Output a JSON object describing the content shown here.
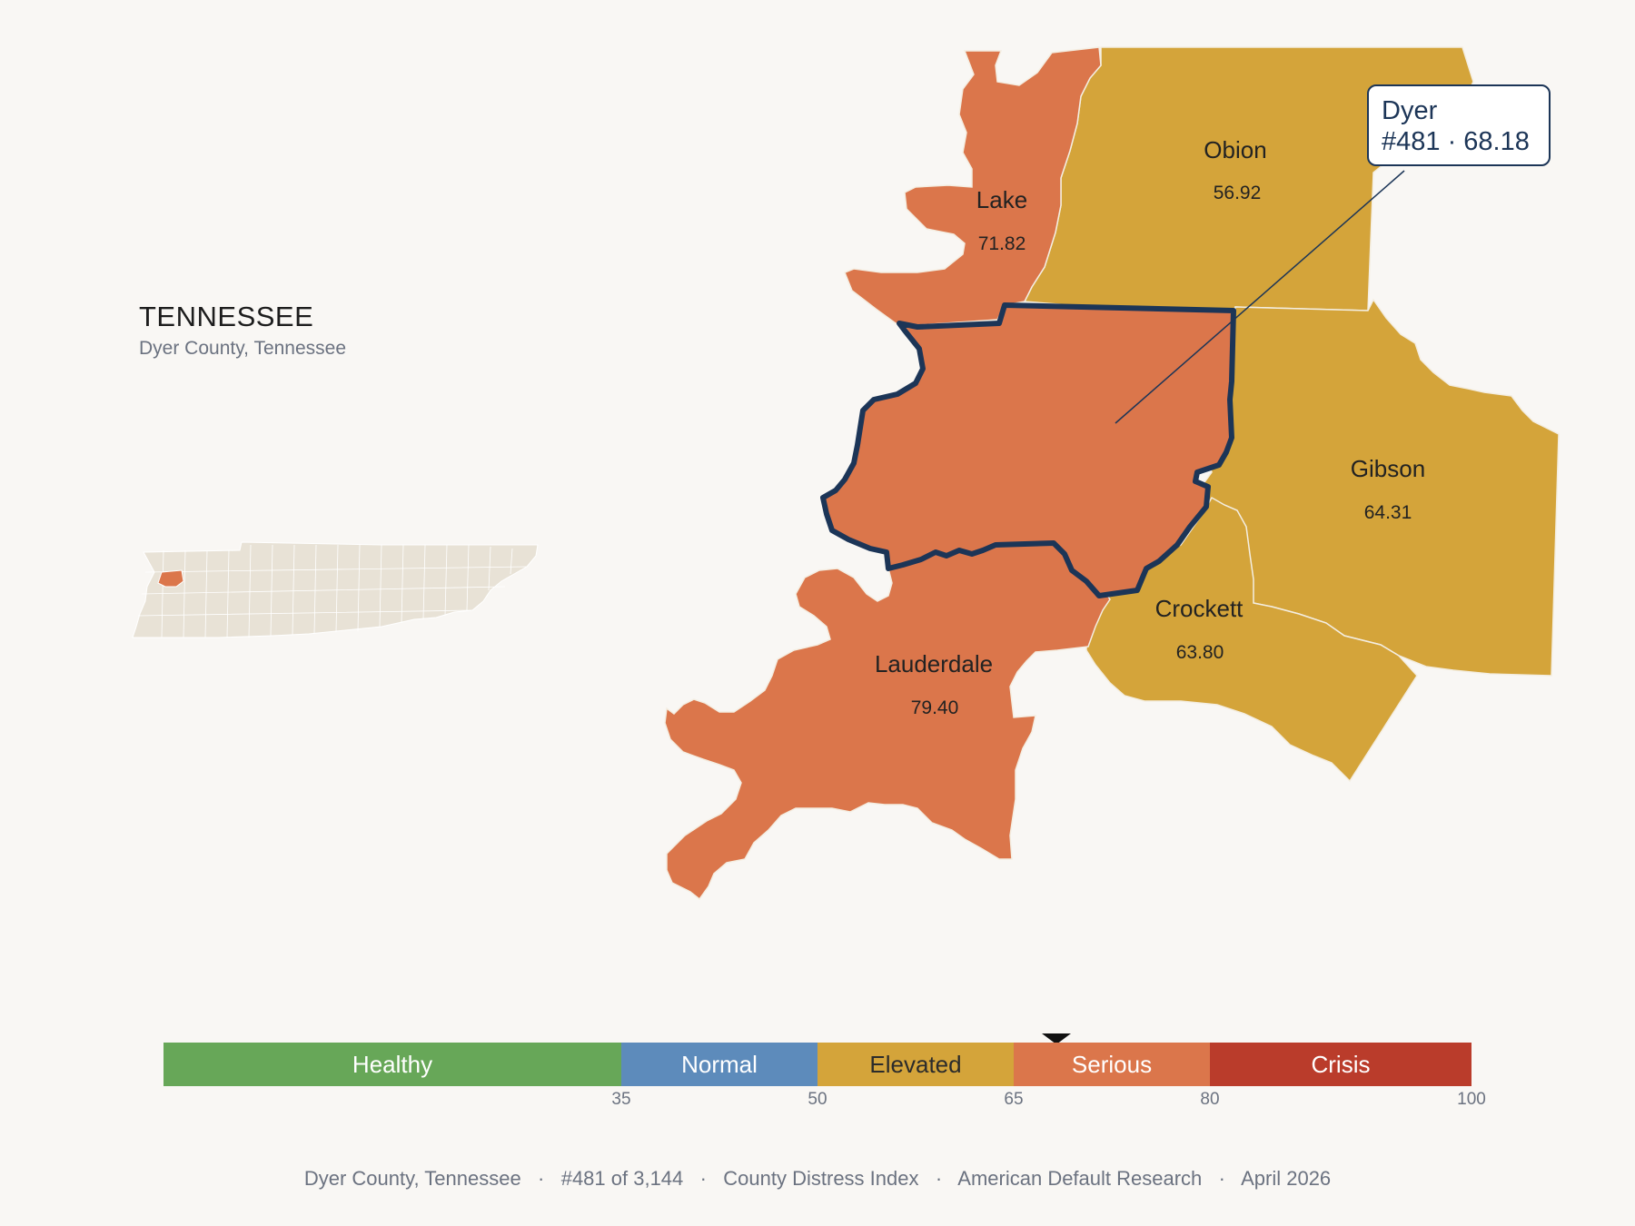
{
  "header": {
    "state_title": "TENNESSEE",
    "subtitle": "Dyer County, Tennessee"
  },
  "callout": {
    "name": "Dyer",
    "detail": "#481 · 68.18"
  },
  "counties": [
    {
      "id": "lake",
      "name": "Lake",
      "score": "71.82",
      "color": "#db764b"
    },
    {
      "id": "obion",
      "name": "Obion",
      "score": "56.92",
      "color": "#d4a43a"
    },
    {
      "id": "dyer",
      "name": "Dyer",
      "score": "68.18",
      "color": "#db764b",
      "highlighted": true
    },
    {
      "id": "gibson",
      "name": "Gibson",
      "score": "64.31",
      "color": "#d4a43a"
    },
    {
      "id": "crockett",
      "name": "Crockett",
      "score": "63.80",
      "color": "#d4a43a"
    },
    {
      "id": "lauderdale",
      "name": "Lauderdale",
      "score": "79.40",
      "color": "#db764b"
    }
  ],
  "colors": {
    "background": "#f9f7f4",
    "highlight_outline": "#1c3557",
    "inset_state_fill": "#e8e2d6",
    "inset_highlight": "#db764b"
  },
  "scale": {
    "min": 0,
    "max": 100,
    "marker_value": 68.18,
    "segments": [
      {
        "label": "Healthy",
        "from": 0,
        "to": 35,
        "color": "#67a758",
        "text_color": "#ffffff"
      },
      {
        "label": "Normal",
        "from": 35,
        "to": 50,
        "color": "#5d8bbb",
        "text_color": "#ffffff"
      },
      {
        "label": "Elevated",
        "from": 50,
        "to": 65,
        "color": "#d4a43a",
        "text_color": "#2b2b2b"
      },
      {
        "label": "Serious",
        "from": 65,
        "to": 80,
        "color": "#db764b",
        "text_color": "#ffffff"
      },
      {
        "label": "Crisis",
        "from": 80,
        "to": 100,
        "color": "#ba3c2b",
        "text_color": "#ffffff"
      }
    ],
    "ticks": [
      "35",
      "50",
      "65",
      "80",
      "100"
    ]
  },
  "footer": {
    "county": "Dyer County, Tennessee",
    "rank": "#481 of 3,144",
    "index": "County Distress Index",
    "source": "American Default Research",
    "date": "April 2026"
  }
}
